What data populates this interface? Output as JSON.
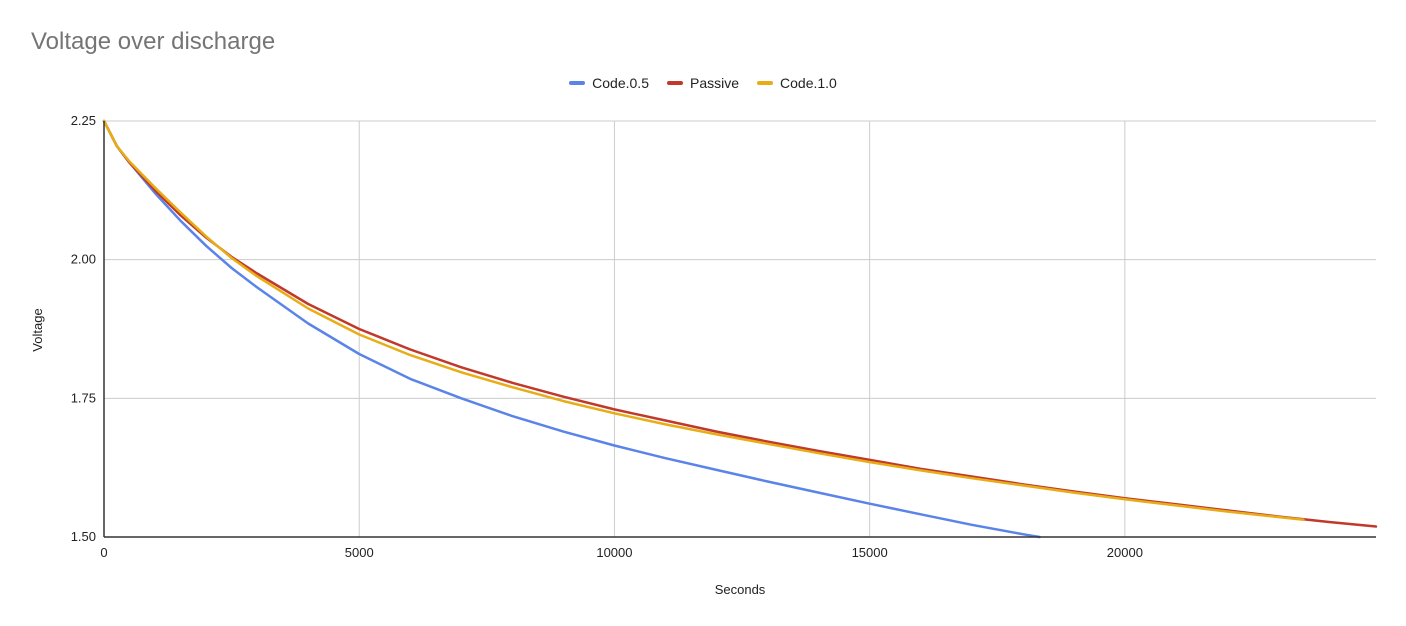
{
  "chart_data": {
    "type": "line",
    "title": "Voltage over discharge",
    "xlabel": "Seconds",
    "ylabel": "Voltage",
    "xlim": [
      0,
      24920
    ],
    "ylim": [
      1.5,
      2.25
    ],
    "x_ticks": [
      "0",
      "5000",
      "10000",
      "15000",
      "20000"
    ],
    "y_ticks": [
      "1.50",
      "1.75",
      "2.00",
      "2.25"
    ],
    "grid": true,
    "legend_position": "top",
    "series": [
      {
        "name": "Code.0.5",
        "color": "#5b84e8",
        "x": [
          0,
          250,
          500,
          1000,
          1500,
          2000,
          2500,
          3000,
          4000,
          5000,
          6000,
          7000,
          8000,
          9000,
          10000,
          11000,
          12000,
          13000,
          14000,
          15000,
          16000,
          17000,
          18000,
          18330
        ],
        "y": [
          2.25,
          2.205,
          2.175,
          2.12,
          2.07,
          2.025,
          1.985,
          1.95,
          1.885,
          1.83,
          1.785,
          1.75,
          1.718,
          1.69,
          1.665,
          1.642,
          1.621,
          1.6,
          1.58,
          1.56,
          1.541,
          1.522,
          1.505,
          1.5
        ]
      },
      {
        "name": "Passive",
        "color": "#c0392b",
        "x": [
          0,
          250,
          500,
          1000,
          1500,
          2000,
          2500,
          3000,
          4000,
          5000,
          6000,
          7000,
          8000,
          9000,
          10000,
          11000,
          12000,
          13000,
          14000,
          15000,
          16000,
          17000,
          18000,
          19000,
          20000,
          21000,
          22000,
          23000,
          24000,
          24920
        ],
        "y": [
          2.25,
          2.205,
          2.175,
          2.125,
          2.08,
          2.04,
          2.005,
          1.975,
          1.92,
          1.875,
          1.838,
          1.806,
          1.778,
          1.753,
          1.73,
          1.71,
          1.69,
          1.672,
          1.655,
          1.639,
          1.623,
          1.609,
          1.595,
          1.582,
          1.57,
          1.559,
          1.548,
          1.537,
          1.527,
          1.519
        ]
      },
      {
        "name": "Code.1.0",
        "color": "#e8ad16",
        "x": [
          0,
          250,
          500,
          1000,
          1500,
          2000,
          2500,
          3000,
          4000,
          5000,
          6000,
          7000,
          8000,
          9000,
          10000,
          11000,
          12000,
          13000,
          14000,
          15000,
          16000,
          17000,
          18000,
          19000,
          20000,
          21000,
          22000,
          23000,
          23500
        ],
        "y": [
          2.25,
          2.205,
          2.177,
          2.13,
          2.085,
          2.042,
          2.003,
          1.97,
          1.912,
          1.865,
          1.828,
          1.797,
          1.77,
          1.745,
          1.723,
          1.703,
          1.685,
          1.668,
          1.651,
          1.635,
          1.62,
          1.606,
          1.593,
          1.58,
          1.568,
          1.557,
          1.546,
          1.536,
          1.531
        ]
      }
    ]
  }
}
